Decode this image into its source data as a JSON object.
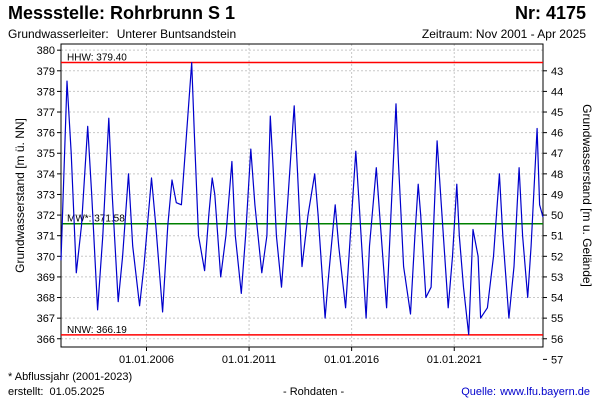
{
  "header": {
    "title": "Messstelle: Rohrbrunn S 1",
    "number": "Nr: 4175",
    "aquifer_label": "Grundwasserleiter:",
    "aquifer_value": "Unterer Buntsandstein",
    "period": "Zeitraum: Nov 2001 - Apr 2025"
  },
  "footer": {
    "footnote": "* Abflussjahr (2001-2023)",
    "created_label": "erstellt:",
    "created_value": "01.05.2025",
    "raw_data": "- Rohdaten -",
    "source_label": "Quelle:",
    "source_url": "www.lfu.bayern.de"
  },
  "colors": {
    "series": "#0000cc",
    "hhw_line": "#ff0000",
    "nnw_line": "#ff0000",
    "mw_line": "#008000",
    "grid": "#c8c8c8"
  },
  "chart_data": {
    "type": "line",
    "ylabel_left": "Grundwasserstand [m ü. NN]",
    "ylabel_right": "Grundwasserstand [m u. Gelände]",
    "ylim": [
      365.6,
      380.3
    ],
    "xlim": [
      "2001-11-01",
      "2025-04-30"
    ],
    "yticks_left": [
      366,
      367,
      368,
      369,
      370,
      371,
      372,
      373,
      374,
      375,
      376,
      377,
      378,
      379,
      380
    ],
    "yticks_right": [
      43,
      44,
      45,
      46,
      47,
      48,
      49,
      50,
      51,
      52,
      53,
      54,
      55,
      56,
      57
    ],
    "right_axis_offset": 422.0,
    "xticks": [
      {
        "date": "2006-01-01",
        "label": "01.01.2006"
      },
      {
        "date": "2011-01-01",
        "label": "01.01.2011"
      },
      {
        "date": "2016-01-01",
        "label": "01.01.2016"
      },
      {
        "date": "2021-01-01",
        "label": "01.01.2021"
      }
    ],
    "grid": true,
    "reference_lines": [
      {
        "key": "hhw",
        "label": "HHW: 379.40",
        "value": 379.4
      },
      {
        "key": "mw",
        "label": "MW*: 371.58",
        "value": 371.58
      },
      {
        "key": "nnw",
        "label": "NNW: 366.19",
        "value": 366.19
      }
    ],
    "series": [
      {
        "x": [
          "2001-11-01",
          "2002-02-15",
          "2002-05-01",
          "2002-08-01",
          "2002-11-01",
          "2003-02-20",
          "2003-05-01",
          "2003-08-15",
          "2003-11-15",
          "2004-03-01",
          "2004-05-01",
          "2004-08-15",
          "2004-11-01",
          "2005-02-15",
          "2005-05-01",
          "2005-09-01",
          "2005-11-15",
          "2006-04-01",
          "2006-06-15",
          "2006-10-15",
          "2007-01-15",
          "2007-04-01",
          "2007-06-15",
          "2007-09-15",
          "2008-03-15",
          "2008-05-01",
          "2008-07-15",
          "2008-11-01",
          "2009-01-15",
          "2009-03-15",
          "2009-05-01",
          "2009-08-15",
          "2009-11-15",
          "2010-03-01",
          "2010-05-01",
          "2010-08-15",
          "2010-11-01",
          "2011-02-01",
          "2011-04-15",
          "2011-08-15",
          "2011-11-15",
          "2012-01-15",
          "2012-03-01",
          "2012-05-01",
          "2012-08-01",
          "2012-11-15",
          "2013-03-15",
          "2013-05-15",
          "2013-08-01",
          "2013-11-15",
          "2014-03-15",
          "2014-05-15",
          "2014-09-15",
          "2014-11-15",
          "2015-03-15",
          "2015-05-15",
          "2015-09-15",
          "2015-11-15",
          "2016-03-15",
          "2016-05-15",
          "2016-09-15",
          "2016-11-15",
          "2017-03-15",
          "2017-05-15",
          "2017-09-15",
          "2017-11-15",
          "2018-03-01",
          "2018-04-15",
          "2018-07-15",
          "2018-11-15",
          "2019-02-01",
          "2019-04-01",
          "2019-05-15",
          "2019-08-15",
          "2019-11-15",
          "2020-03-01",
          "2020-05-15",
          "2020-09-15",
          "2020-12-01",
          "2021-02-15",
          "2021-04-01",
          "2021-06-15",
          "2021-09-15",
          "2021-12-01",
          "2022-03-01",
          "2022-04-15",
          "2022-08-15",
          "2022-12-01",
          "2023-03-15",
          "2023-05-15",
          "2023-09-01",
          "2023-12-01",
          "2024-03-01",
          "2024-05-01",
          "2024-08-01",
          "2024-10-01",
          "2025-01-15",
          "2025-03-01",
          "2025-04-30"
        ],
        "y": [
          369.8,
          378.5,
          375.0,
          369.2,
          371.5,
          376.3,
          373.0,
          367.4,
          371.0,
          376.7,
          373.0,
          367.8,
          370.0,
          374.0,
          370.5,
          367.6,
          369.5,
          373.8,
          371.5,
          367.3,
          371.5,
          373.7,
          372.6,
          372.5,
          379.4,
          376.0,
          371.0,
          369.3,
          372.0,
          373.8,
          373.0,
          369.0,
          371.0,
          374.6,
          371.0,
          368.2,
          371.0,
          375.2,
          372.5,
          369.2,
          371.0,
          376.8,
          374.5,
          371.0,
          368.5,
          372.5,
          377.3,
          374.0,
          369.5,
          372.0,
          374.0,
          372.0,
          367.0,
          369.0,
          372.5,
          370.5,
          367.5,
          370.0,
          375.1,
          372.5,
          367.0,
          370.5,
          374.3,
          372.0,
          367.5,
          371.0,
          377.4,
          374.5,
          369.5,
          367.2,
          371.0,
          373.5,
          372.0,
          368.0,
          368.5,
          375.6,
          372.5,
          367.5,
          370.0,
          373.5,
          371.0,
          368.5,
          366.2,
          371.3,
          370.0,
          367.0,
          367.5,
          370.0,
          374.0,
          371.0,
          367.0,
          369.5,
          374.3,
          371.0,
          368.0,
          370.5,
          376.2,
          372.5,
          371.9
        ]
      }
    ]
  }
}
